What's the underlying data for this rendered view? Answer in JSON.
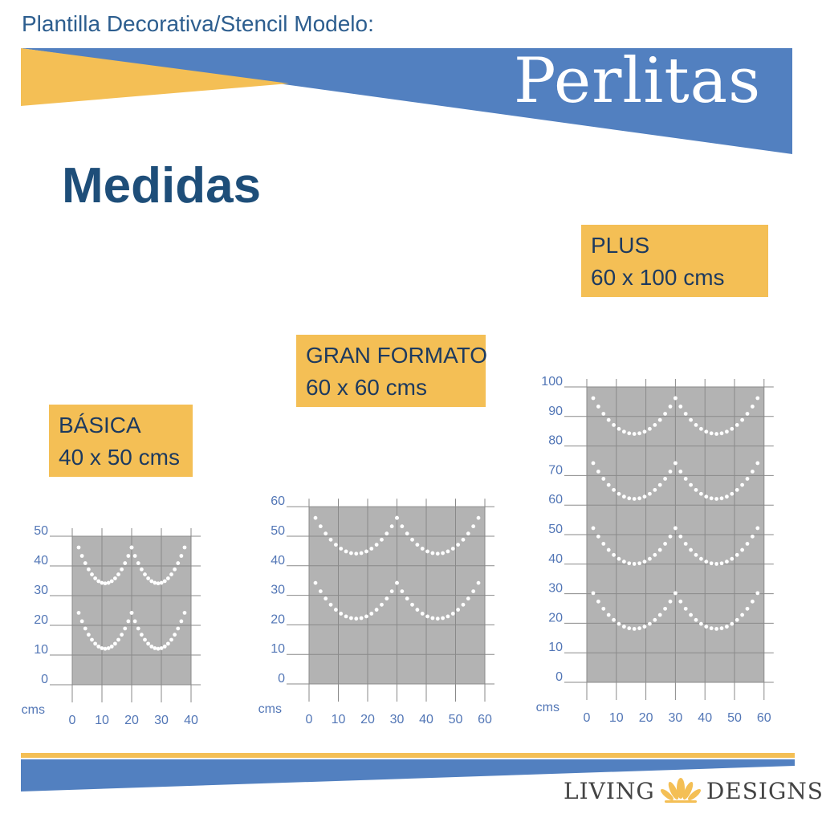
{
  "header": {
    "subtitle": "Plantilla Decorativa/Stencil Modelo:",
    "title": "Perlitas"
  },
  "section_title": "Medidas",
  "sizes": [
    {
      "name": "BÁSICA",
      "dims": "40 x 50 cms"
    },
    {
      "name": "GRAN FORMATO",
      "dims": "60 x 60 cms"
    },
    {
      "name": "PLUS",
      "dims": "60 x 100 cms"
    }
  ],
  "chart_data": [
    {
      "type": "diagram",
      "unit_label": "cms",
      "x_ticks": [
        0,
        10,
        20,
        30,
        40
      ],
      "y_ticks": [
        0,
        10,
        20,
        30,
        40,
        50
      ],
      "width_cm": 40,
      "height_cm": 50
    },
    {
      "type": "diagram",
      "unit_label": "cms",
      "x_ticks": [
        0,
        10,
        20,
        30,
        40,
        50,
        60
      ],
      "y_ticks": [
        0,
        10,
        20,
        30,
        40,
        50,
        60
      ],
      "width_cm": 60,
      "height_cm": 60
    },
    {
      "type": "diagram",
      "unit_label": "cms",
      "x_ticks": [
        0,
        10,
        20,
        30,
        40,
        50,
        60
      ],
      "y_ticks": [
        0,
        10,
        20,
        30,
        40,
        50,
        60,
        70,
        80,
        90,
        100
      ],
      "width_cm": 60,
      "height_cm": 100
    }
  ],
  "colors": {
    "blue": "#5280c0",
    "yellow": "#f4bf55",
    "dark_blue": "#1e4e79",
    "stencil": "#b3b3b3"
  },
  "footer": {
    "brand_left": "LIVING",
    "brand_right": "DESIGNS",
    "logo_icon": "lotus-icon"
  }
}
